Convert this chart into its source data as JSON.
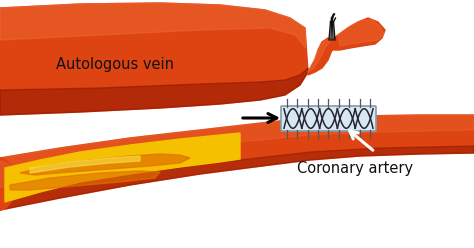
{
  "bg_color": "#ffffff",
  "vein_color": "#cc3300",
  "vein_mid": "#dd4411",
  "vein_light": "#ee6633",
  "vein_dark": "#881100",
  "connector_fill": "#d8e8f0",
  "connector_edge": "#8899aa",
  "plaque_yellow": "#f5c000",
  "plaque_orange": "#e07000",
  "plaque_light": "#f8d840",
  "text_color": "#111111",
  "label_autologous": "Autologous vein",
  "label_coronary": "Coronary artery"
}
